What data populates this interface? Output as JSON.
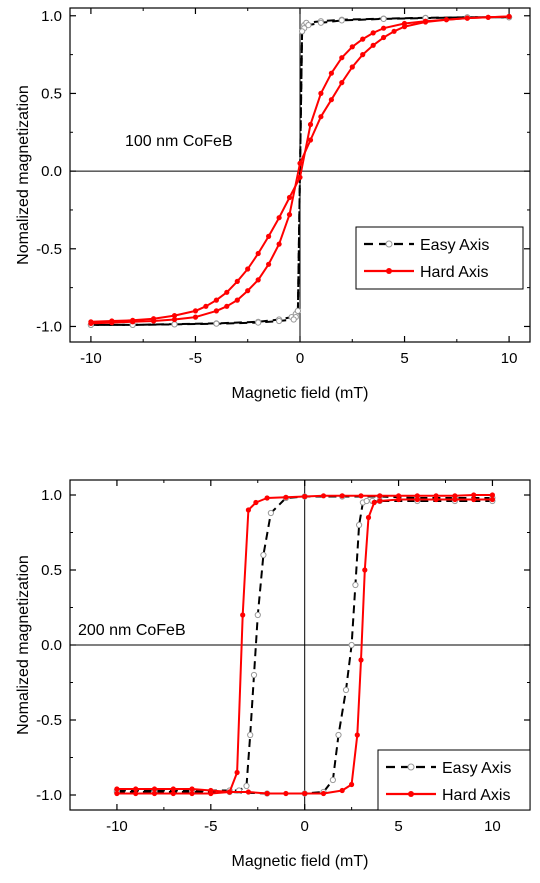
{
  "chart_data": [
    {
      "type": "line",
      "title": "",
      "annotation": "100 nm CoFeB",
      "xlabel": "Magnetic field (mT)",
      "ylabel": "Nomalized magnetization",
      "xlim": [
        -11,
        11
      ],
      "ylim": [
        -1.1,
        1.05
      ],
      "xticks": [
        -10,
        -5,
        0,
        5,
        10
      ],
      "yticks": [
        -1.0,
        -0.5,
        0.0,
        0.5,
        1.0
      ],
      "xtick_labels": [
        "-10",
        "-5",
        "0",
        "5",
        "10"
      ],
      "ytick_labels": [
        "-1.0",
        "-0.5",
        "0.0",
        "0.5",
        "1.0"
      ],
      "zero_lines": true,
      "legend_position": "bottom-right",
      "series": [
        {
          "name": "Easy Axis",
          "color": "#000000",
          "line": "dashed",
          "marker": "hollow-circle",
          "marker_color": "#999999",
          "branches": [
            {
              "x": [
                -10,
                -8,
                -6,
                -4,
                -2,
                -1,
                -0.4,
                -0.2,
                -0.1,
                0.1,
                0.2,
                0.3,
                1,
                2,
                4,
                6,
                8,
                10
              ],
              "y": [
                -0.99,
                -0.99,
                -0.985,
                -0.98,
                -0.97,
                -0.955,
                -0.94,
                -0.92,
                -0.9,
                0.9,
                0.94,
                0.955,
                0.965,
                0.975,
                0.982,
                0.987,
                0.99,
                0.99
              ]
            },
            {
              "x": [
                10,
                8,
                6,
                4,
                2,
                1,
                0.4,
                0.2,
                0.1,
                -0.1,
                -0.2,
                -0.3,
                -1,
                -2,
                -4,
                -6,
                -8,
                -10
              ],
              "y": [
                0.99,
                0.99,
                0.985,
                0.98,
                0.97,
                0.955,
                0.94,
                0.92,
                0.9,
                -0.9,
                -0.94,
                -0.955,
                -0.965,
                -0.975,
                -0.982,
                -0.987,
                -0.99,
                -0.99
              ]
            }
          ]
        },
        {
          "name": "Hard Axis",
          "color": "#ff0000",
          "line": "solid",
          "marker": "filled-circle",
          "marker_color": "#ff0000",
          "branches": [
            {
              "x": [
                -10,
                -9,
                -8,
                -7,
                -6,
                -5,
                -4.5,
                -4,
                -3.5,
                -3,
                -2.5,
                -2,
                -1.5,
                -1,
                -0.5,
                0,
                0.5,
                1,
                1.5,
                2,
                2.5,
                3,
                3.5,
                4,
                5,
                6,
                7,
                8,
                9,
                10
              ],
              "y": [
                -0.97,
                -0.965,
                -0.96,
                -0.95,
                -0.93,
                -0.9,
                -0.87,
                -0.83,
                -0.78,
                -0.71,
                -0.63,
                -0.53,
                -0.42,
                -0.3,
                -0.17,
                -0.04,
                0.3,
                0.5,
                0.63,
                0.73,
                0.8,
                0.85,
                0.89,
                0.92,
                0.95,
                0.965,
                0.975,
                0.985,
                0.99,
                0.995
              ]
            },
            {
              "x": [
                10,
                9,
                8,
                7,
                6,
                5,
                4.5,
                4,
                3.5,
                3,
                2.5,
                2,
                1.5,
                1,
                0.5,
                0,
                -0.5,
                -1,
                -1.5,
                -2,
                -2.5,
                -3,
                -3.5,
                -4,
                -5,
                -6,
                -7,
                -8,
                -9,
                -10
              ],
              "y": [
                0.995,
                0.99,
                0.985,
                0.975,
                0.96,
                0.93,
                0.9,
                0.86,
                0.81,
                0.75,
                0.67,
                0.57,
                0.46,
                0.35,
                0.2,
                0.05,
                -0.28,
                -0.47,
                -0.6,
                -0.7,
                -0.77,
                -0.83,
                -0.87,
                -0.9,
                -0.94,
                -0.955,
                -0.965,
                -0.97,
                -0.975,
                -0.98
              ]
            }
          ]
        }
      ]
    },
    {
      "type": "line",
      "title": "",
      "annotation": "200 nm CoFeB",
      "xlabel": "Magnetic field (mT)",
      "ylabel": "Nomalized magnetization",
      "xlim": [
        -12.5,
        12
      ],
      "ylim": [
        -1.1,
        1.1
      ],
      "xticks": [
        -10,
        -5,
        0,
        5,
        10
      ],
      "yticks": [
        -1.0,
        -0.5,
        0.0,
        0.5,
        1.0
      ],
      "xtick_labels": [
        "-10",
        "-5",
        "0",
        "5",
        "10"
      ],
      "ytick_labels": [
        "-1.0",
        "-0.5",
        "0.0",
        "0.5",
        "1.0"
      ],
      "zero_lines": true,
      "legend_position": "bottom-right",
      "series": [
        {
          "name": "Easy Axis",
          "color": "#000000",
          "line": "dashed",
          "marker": "hollow-circle",
          "marker_color": "#999999",
          "branches": [
            {
              "x": [
                -10,
                -8,
                -6,
                -4,
                -2,
                0,
                1,
                1.5,
                1.8,
                2.2,
                2.5,
                2.7,
                2.9,
                3.1,
                3.3,
                3.6,
                4,
                6,
                8,
                10
              ],
              "y": [
                -0.98,
                -0.98,
                -0.98,
                -0.98,
                -0.99,
                -0.99,
                -0.98,
                -0.9,
                -0.6,
                -0.3,
                0.0,
                0.4,
                0.8,
                0.95,
                0.96,
                0.96,
                0.96,
                0.96,
                0.96,
                0.96
              ]
            },
            {
              "x": [
                10,
                8,
                6,
                4,
                2,
                0,
                -1,
                -1.8,
                -2.2,
                -2.5,
                -2.7,
                -2.9,
                -3.1,
                -3.5,
                -4,
                -6,
                -8,
                -10
              ],
              "y": [
                0.98,
                0.98,
                0.98,
                0.99,
                0.99,
                0.99,
                0.98,
                0.88,
                0.6,
                0.2,
                -0.2,
                -0.6,
                -0.94,
                -0.97,
                -0.97,
                -0.97,
                -0.97,
                -0.97
              ]
            }
          ]
        },
        {
          "name": "Hard Axis",
          "color": "#ff0000",
          "line": "solid",
          "marker": "filled-circle",
          "marker_color": "#ff0000",
          "branches": [
            {
              "x": [
                -10,
                -9,
                -8,
                -7,
                -6,
                -5,
                -4,
                -3,
                -2,
                -1,
                0,
                1,
                2,
                2.5,
                2.8,
                3.0,
                3.2,
                3.4,
                3.7,
                4,
                5,
                6,
                7,
                8,
                9,
                10
              ],
              "y": [
                -0.96,
                -0.96,
                -0.96,
                -0.96,
                -0.96,
                -0.97,
                -0.98,
                -0.98,
                -0.99,
                -0.99,
                -0.99,
                -0.99,
                -0.97,
                -0.93,
                -0.6,
                -0.1,
                0.5,
                0.85,
                0.95,
                0.96,
                0.97,
                0.97,
                0.97,
                0.97,
                0.97,
                0.97
              ]
            },
            {
              "x": [
                10,
                9,
                8,
                7,
                6,
                5,
                4,
                3,
                2,
                1,
                0,
                -1,
                -2,
                -2.6,
                -3.0,
                -3.3,
                -3.6,
                -4,
                -5,
                -6,
                -7,
                -8,
                -9,
                -10
              ],
              "y": [
                1.0,
                1.0,
                0.995,
                0.995,
                0.995,
                0.995,
                0.995,
                0.995,
                0.995,
                0.995,
                0.99,
                0.985,
                0.98,
                0.95,
                0.9,
                0.2,
                -0.85,
                -0.98,
                -0.99,
                -0.99,
                -0.99,
                -0.99,
                -0.99,
                -0.99
              ]
            }
          ]
        }
      ]
    }
  ]
}
